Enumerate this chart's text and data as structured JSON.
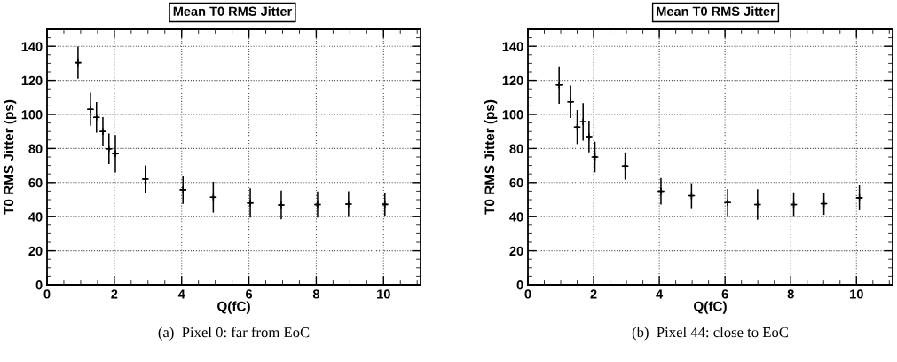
{
  "chart_data": [
    {
      "type": "scatter",
      "title": "Mean T0 RMS Jitter",
      "xlabel": "Q(fC)",
      "ylabel": "T0 RMS Jitter (ps)",
      "x": [
        0.92,
        1.29,
        1.47,
        1.66,
        1.84,
        2.03,
        2.92,
        4.04,
        4.94,
        6.04,
        6.96,
        8.04,
        8.96,
        10.04
      ],
      "series": [
        {
          "color": "#000000",
          "values": [
            130.4,
            103,
            98.3,
            90,
            79.8,
            76.9,
            62,
            55.8,
            51.4,
            48.1,
            46.9,
            47.1,
            47.4,
            47.2
          ],
          "errors": [
            9.5,
            9.7,
            9,
            8.5,
            9,
            11,
            8,
            8.3,
            9,
            8.6,
            8.5,
            7.7,
            7.5,
            6.7
          ],
          "xerrors": [
            0.07,
            0.07,
            0.07,
            0.07,
            0.07,
            0.07,
            0.07,
            0.07,
            0.07,
            0.07,
            0.07,
            0.07,
            0.07,
            0.07
          ]
        }
      ],
      "xlim": [
        0,
        11.1
      ],
      "ylim": [
        0,
        150
      ],
      "xticks": [
        0,
        2,
        4,
        6,
        8,
        10
      ],
      "yticks": [
        0,
        20,
        40,
        60,
        80,
        100,
        120,
        140
      ],
      "grid": true,
      "marker": "cross",
      "annotations": [
        "(a)  Pixel 0: far from EoC"
      ]
    },
    {
      "type": "scatter",
      "title": "Mean T0 RMS Jitter",
      "xlabel": "Q(fC)",
      "ylabel": "T0 RMS Jitter (ps)",
      "x": [
        0.95,
        1.3,
        1.5,
        1.68,
        1.86,
        2.04,
        2.96,
        4.05,
        4.98,
        6.08,
        6.99,
        8.09,
        9.01,
        10.09
      ],
      "series": [
        {
          "color": "#000000",
          "values": [
            117.3,
            107.4,
            92.6,
            95.7,
            87,
            75,
            69.7,
            54.9,
            52.3,
            48.3,
            47.1,
            47.1,
            47.6,
            51.1
          ],
          "errors": [
            11,
            9.5,
            10,
            11,
            9.3,
            9,
            8,
            7.7,
            7.3,
            8,
            9,
            7.2,
            6.5,
            7.3
          ],
          "xerrors": [
            0.07,
            0.07,
            0.07,
            0.07,
            0.07,
            0.07,
            0.07,
            0.07,
            0.07,
            0.07,
            0.07,
            0.07,
            0.07,
            0.07
          ]
        }
      ],
      "xlim": [
        0,
        11.1
      ],
      "ylim": [
        0,
        150
      ],
      "xticks": [
        0,
        2,
        4,
        6,
        8,
        10
      ],
      "yticks": [
        0,
        20,
        40,
        60,
        80,
        100,
        120,
        140
      ],
      "grid": true,
      "marker": "cross",
      "annotations": [
        "(b)  Pixel 44: close to EoC"
      ]
    }
  ]
}
